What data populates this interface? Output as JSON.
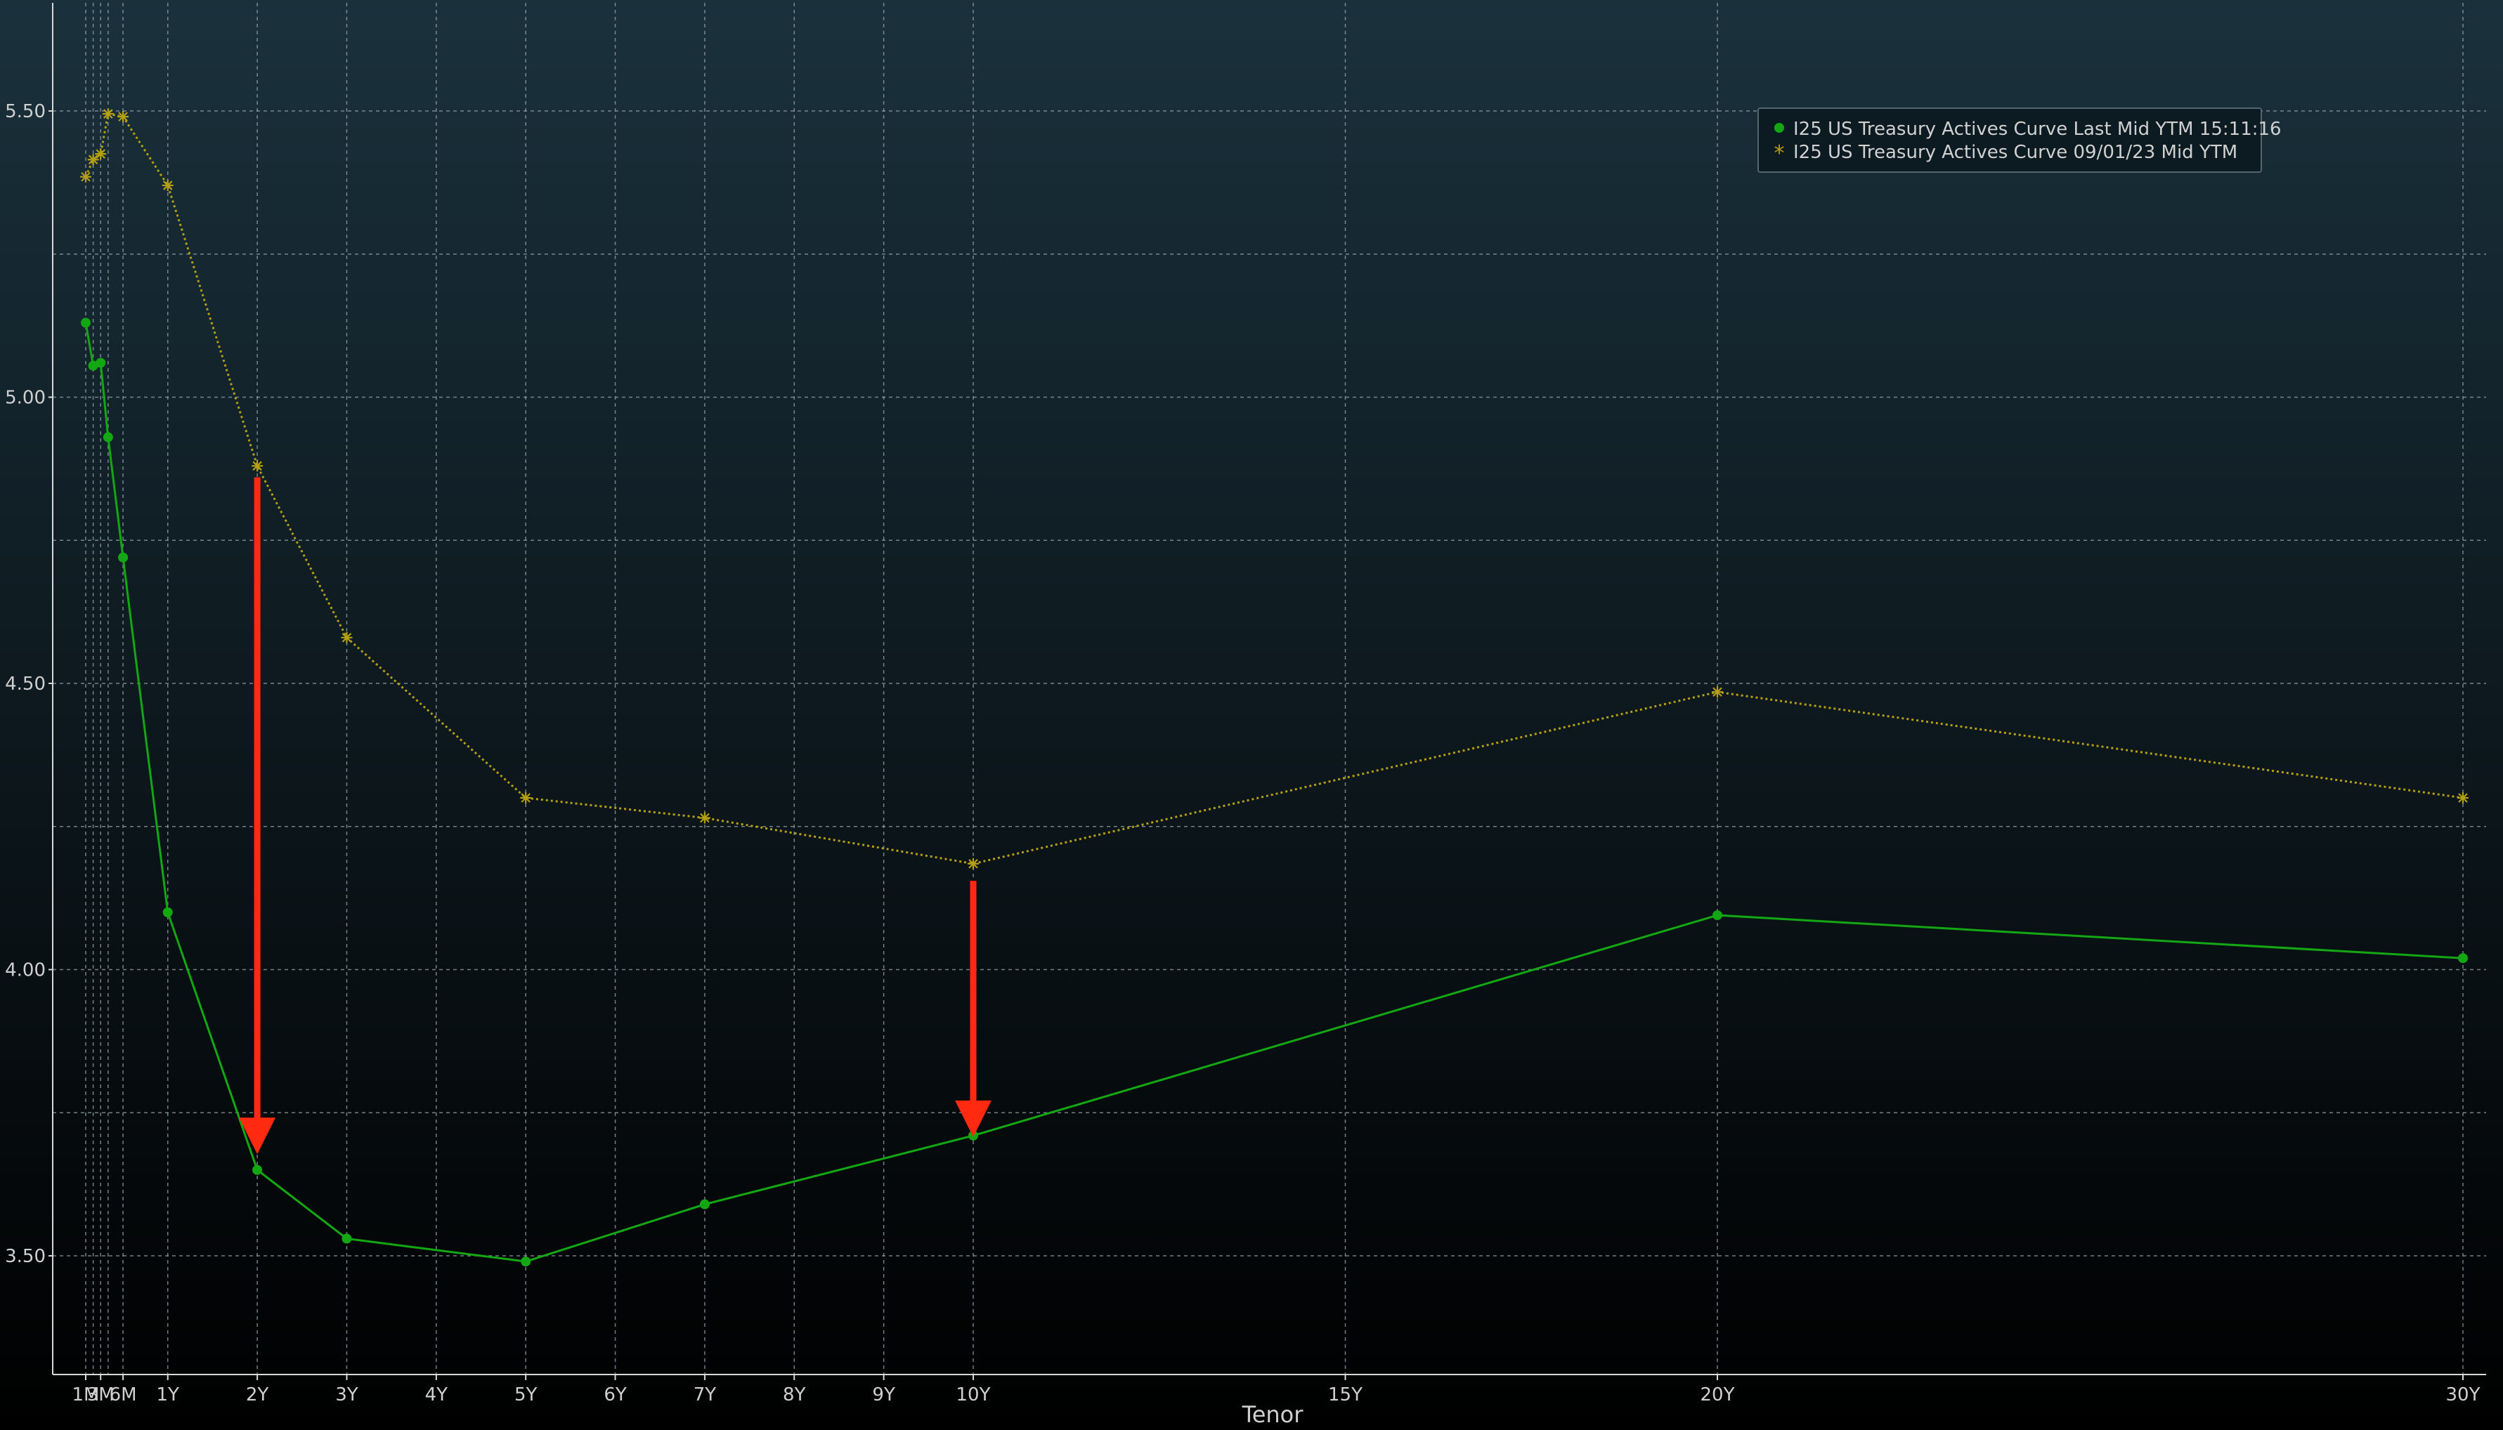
{
  "colors": {
    "background_top": "#1a313c",
    "background_bottom": "#000000",
    "series_current": "#13a813",
    "series_previous": "#b5a013",
    "arrow": "#ff2a10",
    "grid": "#9aa7ad",
    "axis": "#d8d8d8",
    "text": "#d0d0d0"
  },
  "chart_data": {
    "type": "line",
    "title": "",
    "xlabel": "Tenor",
    "ylabel": "",
    "ylim": [
      3.3,
      5.7
    ],
    "yticks": [
      "3.50",
      "4.00",
      "4.50",
      "5.00",
      "5.50"
    ],
    "ytick_values": [
      3.5,
      4.0,
      4.5,
      5.0,
      5.5
    ],
    "xlim": [
      1,
      360
    ],
    "xticks": [
      {
        "label": "1M",
        "months": 1
      },
      {
        "label": "3M",
        "months": 3
      },
      {
        "label": "6M",
        "months": 6
      },
      {
        "label": "1Y",
        "months": 12
      },
      {
        "label": "2Y",
        "months": 24
      },
      {
        "label": "3Y",
        "months": 36
      },
      {
        "label": "4Y",
        "months": 48
      },
      {
        "label": "5Y",
        "months": 60
      },
      {
        "label": "6Y",
        "months": 72
      },
      {
        "label": "7Y",
        "months": 84
      },
      {
        "label": "8Y",
        "months": 96
      },
      {
        "label": "9Y",
        "months": 108
      },
      {
        "label": "10Y",
        "months": 120
      },
      {
        "label": "15Y",
        "months": 180
      },
      {
        "label": "20Y",
        "months": 240
      },
      {
        "label": "30Y",
        "months": 360
      }
    ],
    "extra_vgrid_months": [
      2,
      4
    ],
    "extra_hgrid_values": [
      3.75,
      4.25,
      4.75,
      5.25
    ],
    "grid": true,
    "legend_position": "top-right",
    "series": [
      {
        "name": "I25 US Treasury Actives Curve Last Mid YTM 15:11:16",
        "marker": "dot",
        "style": "solid",
        "x": [
          1,
          2,
          3,
          4,
          6,
          12,
          24,
          36,
          60,
          84,
          120,
          240,
          360
        ],
        "y": [
          5.13,
          5.055,
          5.06,
          4.93,
          4.72,
          4.1,
          3.65,
          3.53,
          3.49,
          3.59,
          3.71,
          4.095,
          4.02
        ]
      },
      {
        "name": "I25 US Treasury Actives Curve 09/01/23 Mid YTM",
        "marker": "asterisk",
        "style": "dotted",
        "x": [
          1,
          2,
          3,
          4,
          6,
          12,
          24,
          36,
          60,
          84,
          120,
          240,
          360
        ],
        "y": [
          5.385,
          5.415,
          5.425,
          5.495,
          5.49,
          5.37,
          4.88,
          4.58,
          4.3,
          4.265,
          4.185,
          4.485,
          4.3
        ]
      }
    ],
    "annotations": [
      {
        "type": "arrow",
        "x_months": 24,
        "from_y": 4.86,
        "to_y": 3.68
      },
      {
        "type": "arrow",
        "x_months": 120,
        "from_y": 4.155,
        "to_y": 3.71
      }
    ]
  }
}
